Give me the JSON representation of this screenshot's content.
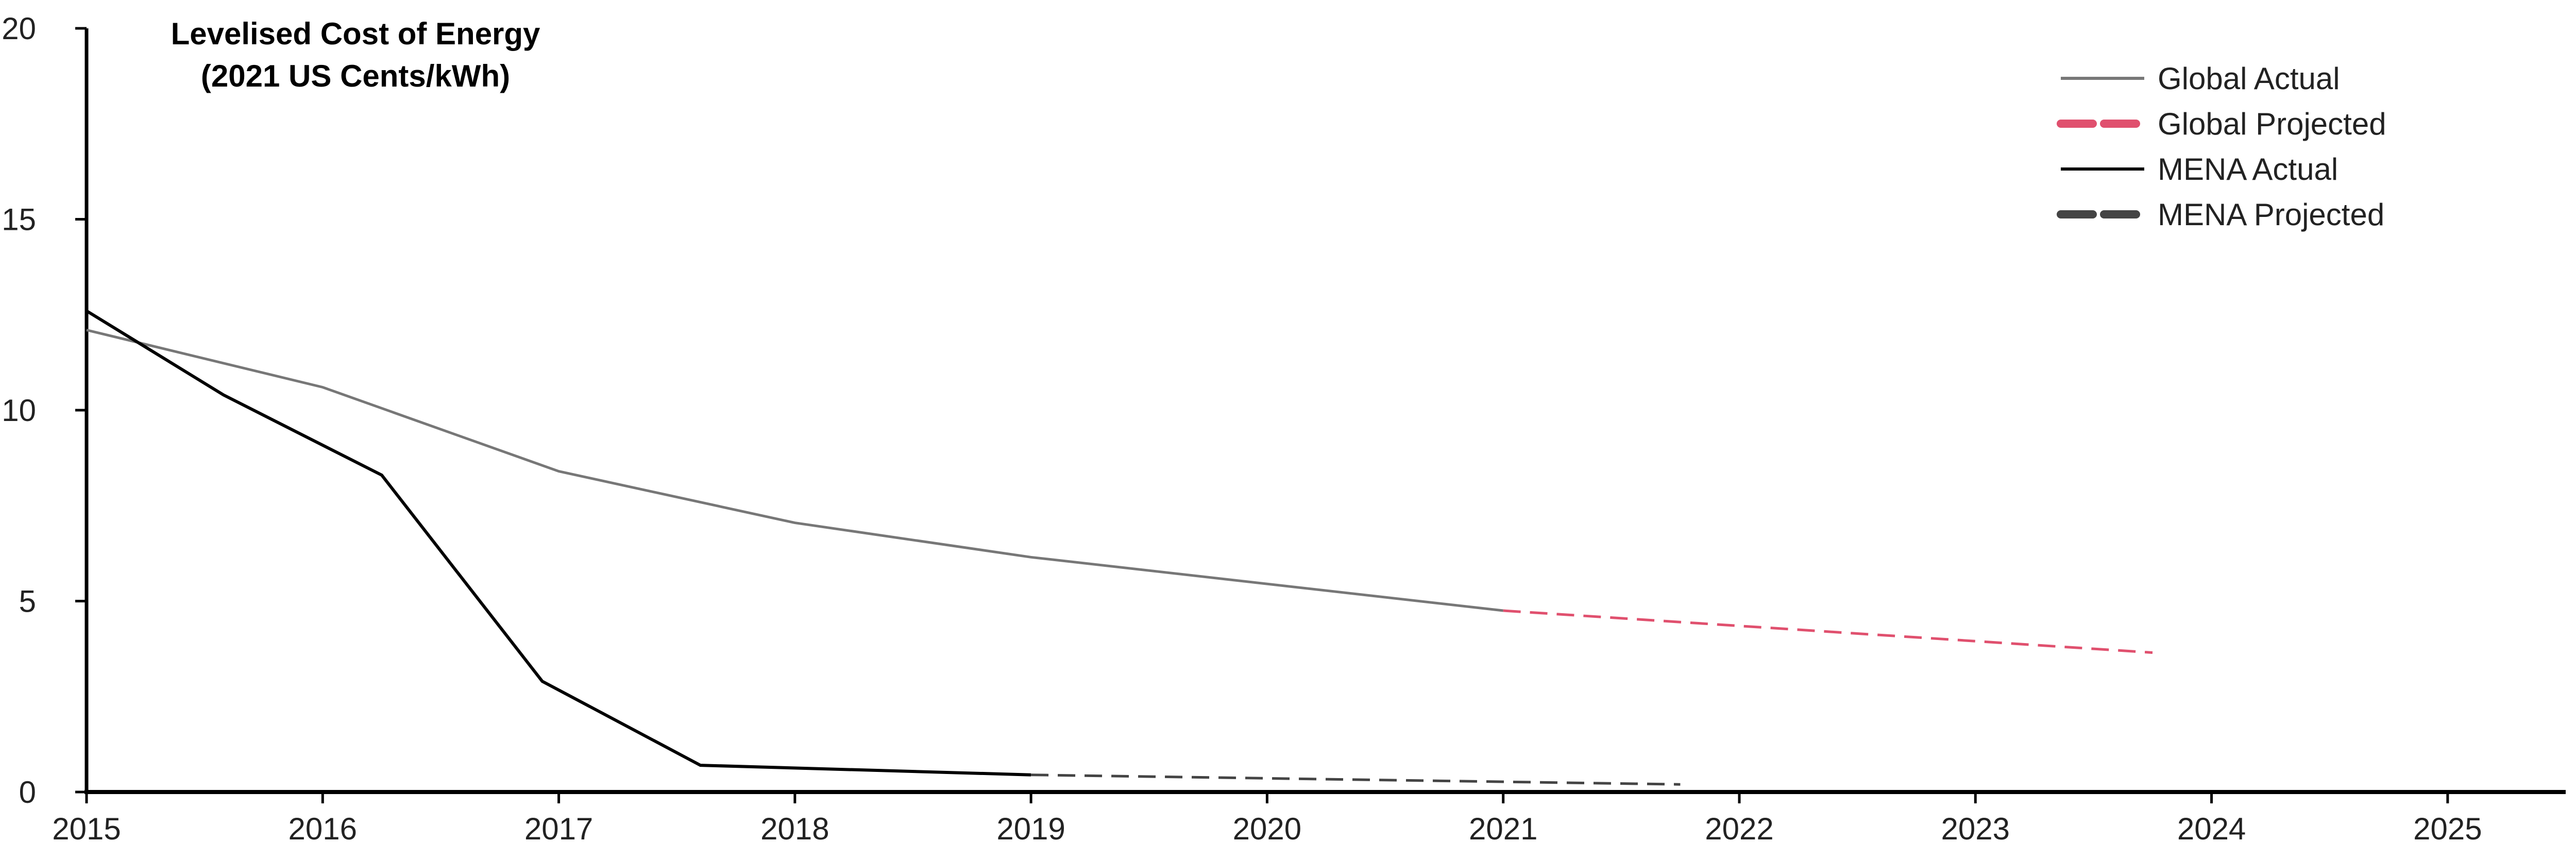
{
  "chart_data": {
    "type": "line",
    "title": "Levelised Cost of Energy",
    "subtitle": "(2021 US Cents/kWh)",
    "xlabel": "",
    "ylabel": "",
    "xlim": [
      2015,
      2025.5
    ],
    "ylim": [
      0,
      20
    ],
    "x_ticks": [
      2015,
      2016,
      2017,
      2018,
      2019,
      2020,
      2021,
      2022,
      2023,
      2024,
      2025
    ],
    "y_ticks": [
      0,
      5,
      10,
      15,
      20
    ],
    "grid": false,
    "legend_position": "top-right",
    "series": [
      {
        "name": "Global Actual",
        "color": "#777777",
        "style": "solid",
        "points": [
          [
            2015.0,
            12.1
          ],
          [
            2016.0,
            10.6
          ],
          [
            2017.0,
            8.4
          ],
          [
            2018.0,
            7.05
          ],
          [
            2019.0,
            6.15
          ],
          [
            2021.0,
            4.75
          ]
        ]
      },
      {
        "name": "Global Projected",
        "color": "#e0506e",
        "style": "dashed",
        "points": [
          [
            2021.0,
            4.75
          ],
          [
            2023.75,
            3.65
          ]
        ]
      },
      {
        "name": "MENA Actual",
        "color": "#000000",
        "style": "solid",
        "points": [
          [
            2015.0,
            12.6
          ],
          [
            2015.58,
            10.4
          ],
          [
            2016.25,
            8.3
          ],
          [
            2016.93,
            2.9
          ],
          [
            2017.6,
            0.7
          ],
          [
            2019.0,
            0.45
          ]
        ]
      },
      {
        "name": "MENA Projected",
        "color": "#444444",
        "style": "dashed",
        "points": [
          [
            2019.0,
            0.45
          ],
          [
            2021.75,
            0.2
          ]
        ]
      }
    ]
  }
}
